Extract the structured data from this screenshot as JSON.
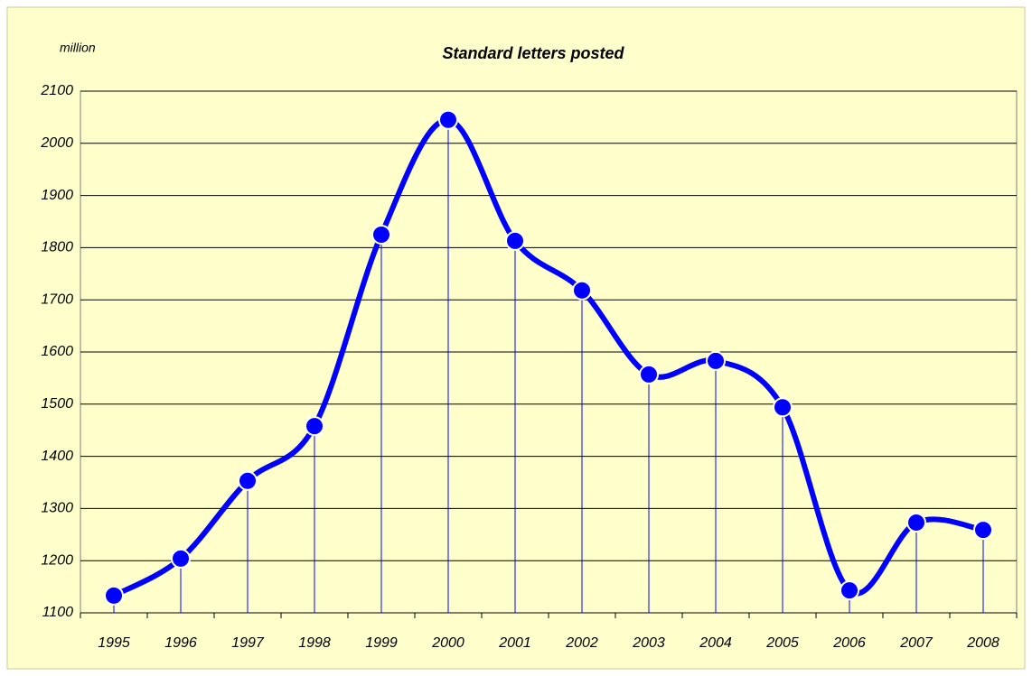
{
  "chart_data": {
    "type": "line",
    "title": "Standard letters posted",
    "y_label": "million",
    "categories": [
      "1995",
      "1996",
      "1997",
      "1998",
      "1999",
      "2000",
      "2001",
      "2002",
      "2003",
      "2004",
      "2005",
      "2006",
      "2007",
      "2008"
    ],
    "series": [
      {
        "name": "Standard letters posted",
        "color": "#0000ff",
        "values": [
          1133,
          1204,
          1353,
          1458,
          1825,
          2045,
          1813,
          1718,
          1557,
          1583,
          1494,
          1143,
          1273,
          1259
        ]
      }
    ],
    "ylim": [
      1100,
      2100
    ],
    "yticks": [
      1100,
      1200,
      1300,
      1400,
      1500,
      1600,
      1700,
      1800,
      1900,
      2000,
      2100
    ],
    "grid": true,
    "drop_lines": true
  }
}
